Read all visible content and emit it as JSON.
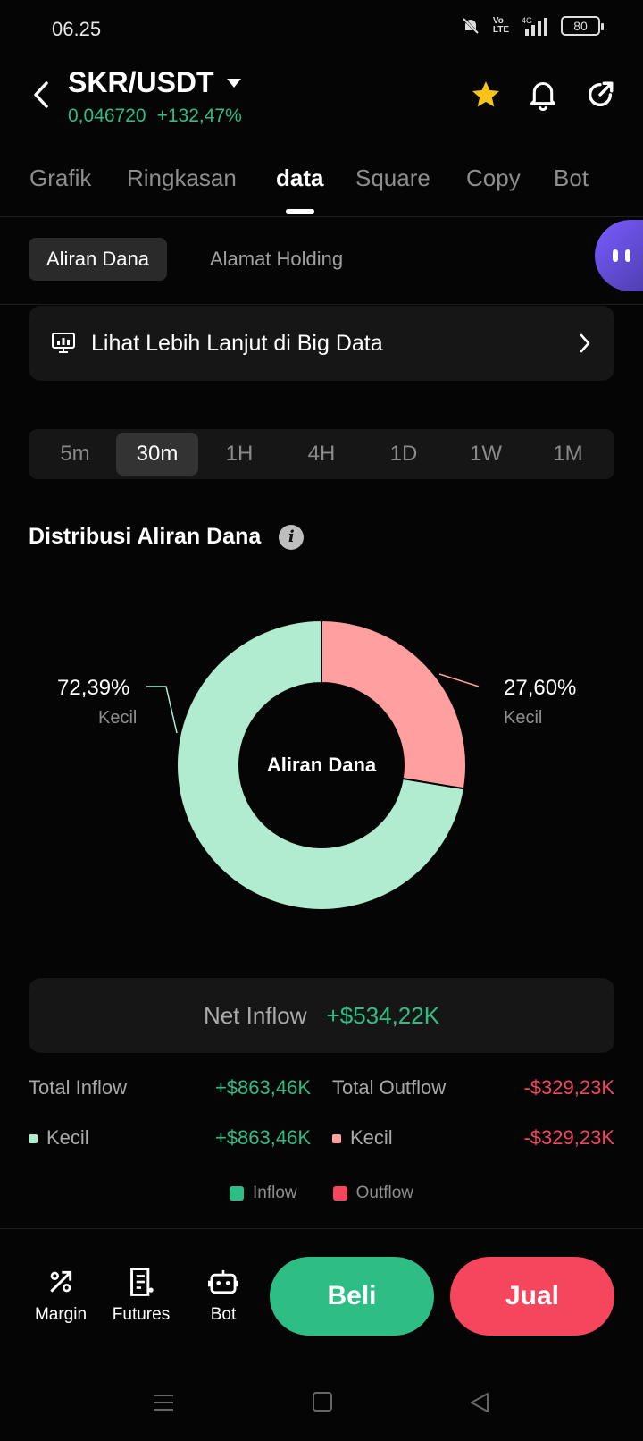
{
  "status": {
    "time": "06.25",
    "battery": "80"
  },
  "header": {
    "pair": "SKR/USDT",
    "price": "0,046720",
    "change": "+132,47%"
  },
  "tabs": [
    "Grafik",
    "Ringkasan",
    "data",
    "Square",
    "Copy",
    "Bot"
  ],
  "active_tab": "data",
  "subtabs": {
    "fund_flow": "Aliran Dana",
    "holding": "Alamat Holding"
  },
  "bigdata": {
    "label": "Lihat Lebih Lanjut di Big Data"
  },
  "timeframes": [
    "5m",
    "30m",
    "1H",
    "4H",
    "1D",
    "1W",
    "1M"
  ],
  "active_timeframe": "30m",
  "section_title": "Distribusi Aliran Dana",
  "chart_data": {
    "type": "pie",
    "title": "Distribusi Aliran Dana",
    "center_label": "Aliran Dana",
    "slices": [
      {
        "label": "Kecil",
        "group": "Outflow",
        "value": 27.6,
        "display": "27,60%",
        "color": "#ff9f9f"
      },
      {
        "label": "Kecil",
        "group": "Inflow",
        "value": 72.39,
        "display": "72,39%",
        "color": "#b1ecd1"
      }
    ]
  },
  "net": {
    "label": "Net Inflow",
    "value": "+$534,22K"
  },
  "totals": {
    "inflow_label": "Total Inflow",
    "inflow_value": "+$863,46K",
    "outflow_label": "Total Outflow",
    "outflow_value": "-$329,23K"
  },
  "breakdown": {
    "inflow_label": "Kecil",
    "inflow_value": "+$863,46K",
    "outflow_label": "Kecil",
    "outflow_value": "-$329,23K"
  },
  "legend": {
    "inflow": "Inflow",
    "outflow": "Outflow",
    "inflow_color": "#2ebd85",
    "outflow_color": "#f6465d"
  },
  "bottom": {
    "margin": "Margin",
    "futures": "Futures",
    "bot": "Bot",
    "buy": "Beli",
    "sell": "Jual"
  }
}
